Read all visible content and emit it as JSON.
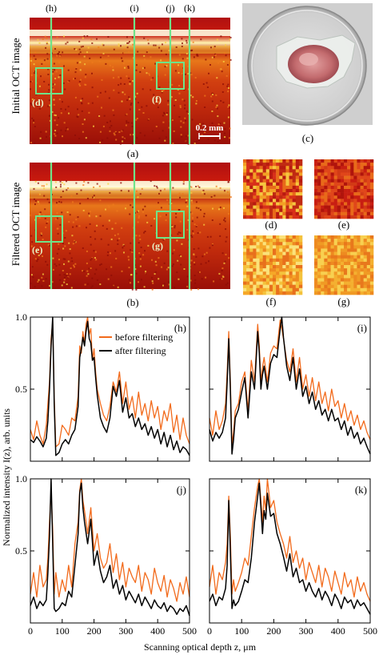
{
  "figure": {
    "line_tags": [
      "(h)",
      "(i)",
      "(j)",
      "(k)"
    ],
    "row_labels": {
      "initial": "Initial OCT image",
      "filtered": "Filtered OCT image"
    },
    "panel_captions": {
      "a": "(a)",
      "b": "(b)",
      "c": "(c)",
      "d": "(d)",
      "e": "(e)",
      "f": "(f)",
      "g": "(g)"
    },
    "box_tags": {
      "a_left": "(d)",
      "a_right": "(f)",
      "b_left": "(e)",
      "b_right": "(g)"
    },
    "scalebar_label": "0.2 mm",
    "colors": {
      "green_line": "#6fe389",
      "accent_orange": "#f26a1b",
      "black": "#000000"
    },
    "ylabel": "Normalized intensity I(z), arb. units",
    "xlabel": "Scanning optical depth z, μm"
  },
  "chart_data": [
    {
      "type": "line",
      "panel_label": "(h)",
      "xlim": [
        0,
        500
      ],
      "ylim": [
        0,
        1.0
      ],
      "yticks": [
        "0.5",
        "1.0"
      ],
      "xticks": [],
      "legend": {
        "before": "before filtering",
        "after": "after filtering",
        "placement": "top-right"
      },
      "series": [
        {
          "name": "before filtering",
          "color": "#f26a1b",
          "x": [
            0,
            10,
            20,
            30,
            40,
            50,
            55,
            60,
            65,
            70,
            75,
            80,
            90,
            100,
            110,
            120,
            130,
            140,
            150,
            155,
            160,
            165,
            170,
            175,
            180,
            185,
            190,
            195,
            200,
            205,
            210,
            220,
            230,
            240,
            250,
            260,
            270,
            280,
            290,
            300,
            310,
            320,
            330,
            340,
            350,
            360,
            370,
            380,
            390,
            400,
            410,
            420,
            430,
            440,
            450,
            460,
            470,
            480,
            490,
            500
          ],
          "y": [
            0.22,
            0.15,
            0.28,
            0.18,
            0.12,
            0.25,
            0.4,
            0.55,
            0.85,
            0.97,
            0.45,
            0.1,
            0.12,
            0.25,
            0.22,
            0.18,
            0.3,
            0.28,
            0.45,
            0.8,
            0.75,
            0.9,
            0.82,
            0.95,
            1.0,
            0.88,
            0.92,
            0.7,
            0.78,
            0.62,
            0.5,
            0.4,
            0.32,
            0.28,
            0.38,
            0.55,
            0.48,
            0.62,
            0.4,
            0.55,
            0.36,
            0.45,
            0.3,
            0.48,
            0.32,
            0.4,
            0.28,
            0.42,
            0.3,
            0.38,
            0.22,
            0.35,
            0.28,
            0.4,
            0.2,
            0.32,
            0.15,
            0.3,
            0.18,
            0.12
          ]
        },
        {
          "name": "after filtering",
          "color": "#000000",
          "x": [
            0,
            10,
            20,
            30,
            40,
            50,
            55,
            60,
            65,
            70,
            75,
            80,
            90,
            100,
            110,
            120,
            130,
            140,
            150,
            155,
            160,
            165,
            170,
            175,
            180,
            185,
            190,
            195,
            200,
            205,
            210,
            220,
            230,
            240,
            250,
            260,
            270,
            280,
            290,
            300,
            310,
            320,
            330,
            340,
            350,
            360,
            370,
            380,
            390,
            400,
            410,
            420,
            430,
            440,
            450,
            460,
            470,
            480,
            490,
            500
          ],
          "y": [
            0.15,
            0.13,
            0.17,
            0.14,
            0.1,
            0.16,
            0.28,
            0.5,
            0.8,
            1.0,
            0.4,
            0.04,
            0.06,
            0.12,
            0.15,
            0.12,
            0.18,
            0.22,
            0.38,
            0.72,
            0.78,
            0.86,
            0.8,
            0.9,
            0.97,
            0.85,
            0.82,
            0.7,
            0.72,
            0.58,
            0.46,
            0.3,
            0.24,
            0.2,
            0.3,
            0.52,
            0.45,
            0.56,
            0.34,
            0.44,
            0.3,
            0.33,
            0.24,
            0.3,
            0.22,
            0.26,
            0.18,
            0.24,
            0.16,
            0.22,
            0.12,
            0.2,
            0.1,
            0.18,
            0.08,
            0.14,
            0.06,
            0.1,
            0.08,
            0.04
          ]
        }
      ]
    },
    {
      "type": "line",
      "panel_label": "(i)",
      "xlim": [
        0,
        500
      ],
      "ylim": [
        0,
        1.0
      ],
      "yticks": [],
      "xticks": [],
      "series": [
        {
          "name": "before filtering",
          "color": "#f26a1b",
          "x": [
            0,
            10,
            20,
            30,
            40,
            50,
            55,
            60,
            65,
            70,
            75,
            80,
            90,
            100,
            110,
            120,
            130,
            140,
            150,
            155,
            160,
            165,
            170,
            180,
            190,
            200,
            210,
            220,
            225,
            230,
            240,
            250,
            260,
            270,
            280,
            290,
            300,
            310,
            320,
            330,
            340,
            350,
            360,
            370,
            380,
            390,
            400,
            410,
            420,
            430,
            440,
            450,
            460,
            470,
            480,
            490,
            500
          ],
          "y": [
            0.3,
            0.18,
            0.35,
            0.22,
            0.28,
            0.4,
            0.62,
            0.9,
            0.55,
            0.12,
            0.2,
            0.35,
            0.4,
            0.55,
            0.62,
            0.35,
            0.7,
            0.55,
            0.95,
            0.8,
            0.55,
            0.65,
            0.72,
            0.55,
            0.75,
            0.8,
            0.78,
            0.98,
            0.92,
            0.85,
            0.7,
            0.62,
            0.78,
            0.55,
            0.72,
            0.5,
            0.6,
            0.45,
            0.58,
            0.42,
            0.55,
            0.4,
            0.48,
            0.35,
            0.5,
            0.38,
            0.42,
            0.3,
            0.4,
            0.28,
            0.35,
            0.25,
            0.32,
            0.22,
            0.28,
            0.2,
            0.15
          ]
        },
        {
          "name": "after filtering",
          "color": "#000000",
          "x": [
            0,
            10,
            20,
            30,
            40,
            50,
            55,
            60,
            65,
            70,
            75,
            80,
            90,
            100,
            110,
            120,
            130,
            140,
            150,
            155,
            160,
            165,
            170,
            180,
            190,
            200,
            210,
            220,
            225,
            230,
            240,
            250,
            260,
            270,
            280,
            290,
            300,
            310,
            320,
            330,
            340,
            350,
            360,
            370,
            380,
            390,
            400,
            410,
            420,
            430,
            440,
            450,
            460,
            470,
            480,
            490,
            500
          ],
          "y": [
            0.22,
            0.14,
            0.2,
            0.16,
            0.2,
            0.3,
            0.55,
            0.85,
            0.5,
            0.05,
            0.15,
            0.3,
            0.36,
            0.48,
            0.58,
            0.3,
            0.62,
            0.5,
            0.9,
            0.75,
            0.5,
            0.6,
            0.66,
            0.5,
            0.68,
            0.74,
            0.72,
            0.92,
            1.0,
            0.86,
            0.66,
            0.56,
            0.72,
            0.5,
            0.64,
            0.45,
            0.52,
            0.4,
            0.48,
            0.36,
            0.42,
            0.32,
            0.36,
            0.28,
            0.36,
            0.28,
            0.3,
            0.22,
            0.28,
            0.18,
            0.24,
            0.16,
            0.2,
            0.12,
            0.16,
            0.1,
            0.05
          ]
        }
      ]
    },
    {
      "type": "line",
      "panel_label": "(j)",
      "xlim": [
        0,
        500
      ],
      "ylim": [
        0,
        1.0
      ],
      "yticks": [
        "0.5",
        "1.0"
      ],
      "xticks": [
        "0",
        "100",
        "200",
        "300",
        "400",
        "500"
      ],
      "series": [
        {
          "name": "before filtering",
          "color": "#f26a1b",
          "x": [
            0,
            10,
            20,
            30,
            40,
            50,
            55,
            60,
            65,
            70,
            75,
            80,
            90,
            100,
            110,
            120,
            130,
            140,
            150,
            155,
            160,
            165,
            170,
            180,
            190,
            200,
            210,
            220,
            230,
            240,
            250,
            260,
            270,
            280,
            290,
            300,
            310,
            320,
            330,
            340,
            350,
            360,
            370,
            380,
            390,
            400,
            410,
            420,
            430,
            440,
            450,
            460,
            470,
            480,
            490,
            500
          ],
          "y": [
            0.2,
            0.35,
            0.18,
            0.4,
            0.25,
            0.3,
            0.45,
            0.7,
            0.92,
            0.65,
            0.2,
            0.35,
            0.18,
            0.3,
            0.22,
            0.4,
            0.25,
            0.55,
            0.7,
            0.92,
            1.0,
            0.85,
            0.78,
            0.62,
            0.8,
            0.5,
            0.62,
            0.45,
            0.38,
            0.42,
            0.55,
            0.35,
            0.48,
            0.3,
            0.42,
            0.25,
            0.38,
            0.32,
            0.28,
            0.4,
            0.22,
            0.35,
            0.3,
            0.2,
            0.38,
            0.28,
            0.22,
            0.33,
            0.18,
            0.3,
            0.24,
            0.15,
            0.28,
            0.2,
            0.32,
            0.18
          ]
        },
        {
          "name": "after filtering",
          "color": "#000000",
          "x": [
            0,
            10,
            20,
            30,
            40,
            50,
            55,
            60,
            65,
            70,
            75,
            80,
            90,
            100,
            110,
            120,
            130,
            140,
            150,
            155,
            160,
            165,
            170,
            180,
            190,
            200,
            210,
            220,
            230,
            240,
            250,
            260,
            270,
            280,
            290,
            300,
            310,
            320,
            330,
            340,
            350,
            360,
            370,
            380,
            390,
            400,
            410,
            420,
            430,
            440,
            450,
            460,
            470,
            480,
            490,
            500
          ],
          "y": [
            0.12,
            0.18,
            0.1,
            0.15,
            0.12,
            0.16,
            0.35,
            0.6,
            1.0,
            0.55,
            0.1,
            0.08,
            0.1,
            0.14,
            0.12,
            0.22,
            0.18,
            0.4,
            0.62,
            0.9,
            0.97,
            0.8,
            0.7,
            0.55,
            0.72,
            0.4,
            0.5,
            0.36,
            0.28,
            0.32,
            0.4,
            0.24,
            0.3,
            0.2,
            0.26,
            0.16,
            0.22,
            0.18,
            0.14,
            0.2,
            0.12,
            0.18,
            0.14,
            0.1,
            0.16,
            0.12,
            0.1,
            0.14,
            0.08,
            0.12,
            0.1,
            0.06,
            0.1,
            0.08,
            0.12,
            0.05
          ]
        }
      ]
    },
    {
      "type": "line",
      "panel_label": "(k)",
      "xlim": [
        0,
        500
      ],
      "ylim": [
        0,
        1.0
      ],
      "yticks": [],
      "xticks": [
        "0",
        "100",
        "200",
        "300",
        "400",
        "500"
      ],
      "series": [
        {
          "name": "before filtering",
          "color": "#f26a1b",
          "x": [
            0,
            10,
            20,
            30,
            40,
            50,
            55,
            60,
            65,
            70,
            75,
            80,
            90,
            100,
            110,
            120,
            130,
            140,
            150,
            155,
            160,
            165,
            170,
            175,
            180,
            190,
            200,
            210,
            220,
            230,
            240,
            250,
            260,
            270,
            280,
            290,
            300,
            310,
            320,
            330,
            340,
            350,
            360,
            370,
            380,
            390,
            400,
            410,
            420,
            430,
            440,
            450,
            460,
            470,
            480,
            490,
            500
          ],
          "y": [
            0.25,
            0.4,
            0.2,
            0.35,
            0.3,
            0.42,
            0.55,
            0.88,
            0.6,
            0.2,
            0.3,
            0.22,
            0.28,
            0.35,
            0.45,
            0.4,
            0.6,
            0.8,
            0.95,
            1.0,
            0.85,
            0.7,
            0.88,
            0.78,
            1.0,
            0.8,
            0.85,
            0.7,
            0.62,
            0.55,
            0.45,
            0.6,
            0.42,
            0.5,
            0.38,
            0.45,
            0.3,
            0.42,
            0.35,
            0.28,
            0.4,
            0.25,
            0.38,
            0.32,
            0.22,
            0.36,
            0.28,
            0.2,
            0.35,
            0.25,
            0.3,
            0.18,
            0.32,
            0.22,
            0.28,
            0.2,
            0.15
          ]
        },
        {
          "name": "after filtering",
          "color": "#000000",
          "x": [
            0,
            10,
            20,
            30,
            40,
            50,
            55,
            60,
            65,
            70,
            75,
            80,
            90,
            100,
            110,
            120,
            130,
            140,
            150,
            155,
            160,
            165,
            170,
            175,
            180,
            190,
            200,
            210,
            220,
            230,
            240,
            250,
            260,
            270,
            280,
            290,
            300,
            310,
            320,
            330,
            340,
            350,
            360,
            370,
            380,
            390,
            400,
            410,
            420,
            430,
            440,
            450,
            460,
            470,
            480,
            490,
            500
          ],
          "y": [
            0.15,
            0.2,
            0.12,
            0.18,
            0.16,
            0.24,
            0.4,
            0.85,
            0.5,
            0.1,
            0.16,
            0.12,
            0.15,
            0.22,
            0.3,
            0.28,
            0.45,
            0.7,
            0.88,
            0.97,
            0.8,
            0.62,
            0.78,
            0.72,
            0.9,
            0.74,
            0.76,
            0.62,
            0.55,
            0.46,
            0.36,
            0.48,
            0.32,
            0.38,
            0.28,
            0.3,
            0.22,
            0.28,
            0.22,
            0.18,
            0.24,
            0.16,
            0.22,
            0.18,
            0.12,
            0.2,
            0.16,
            0.1,
            0.18,
            0.14,
            0.16,
            0.1,
            0.16,
            0.12,
            0.14,
            0.1,
            0.06
          ]
        }
      ]
    }
  ]
}
